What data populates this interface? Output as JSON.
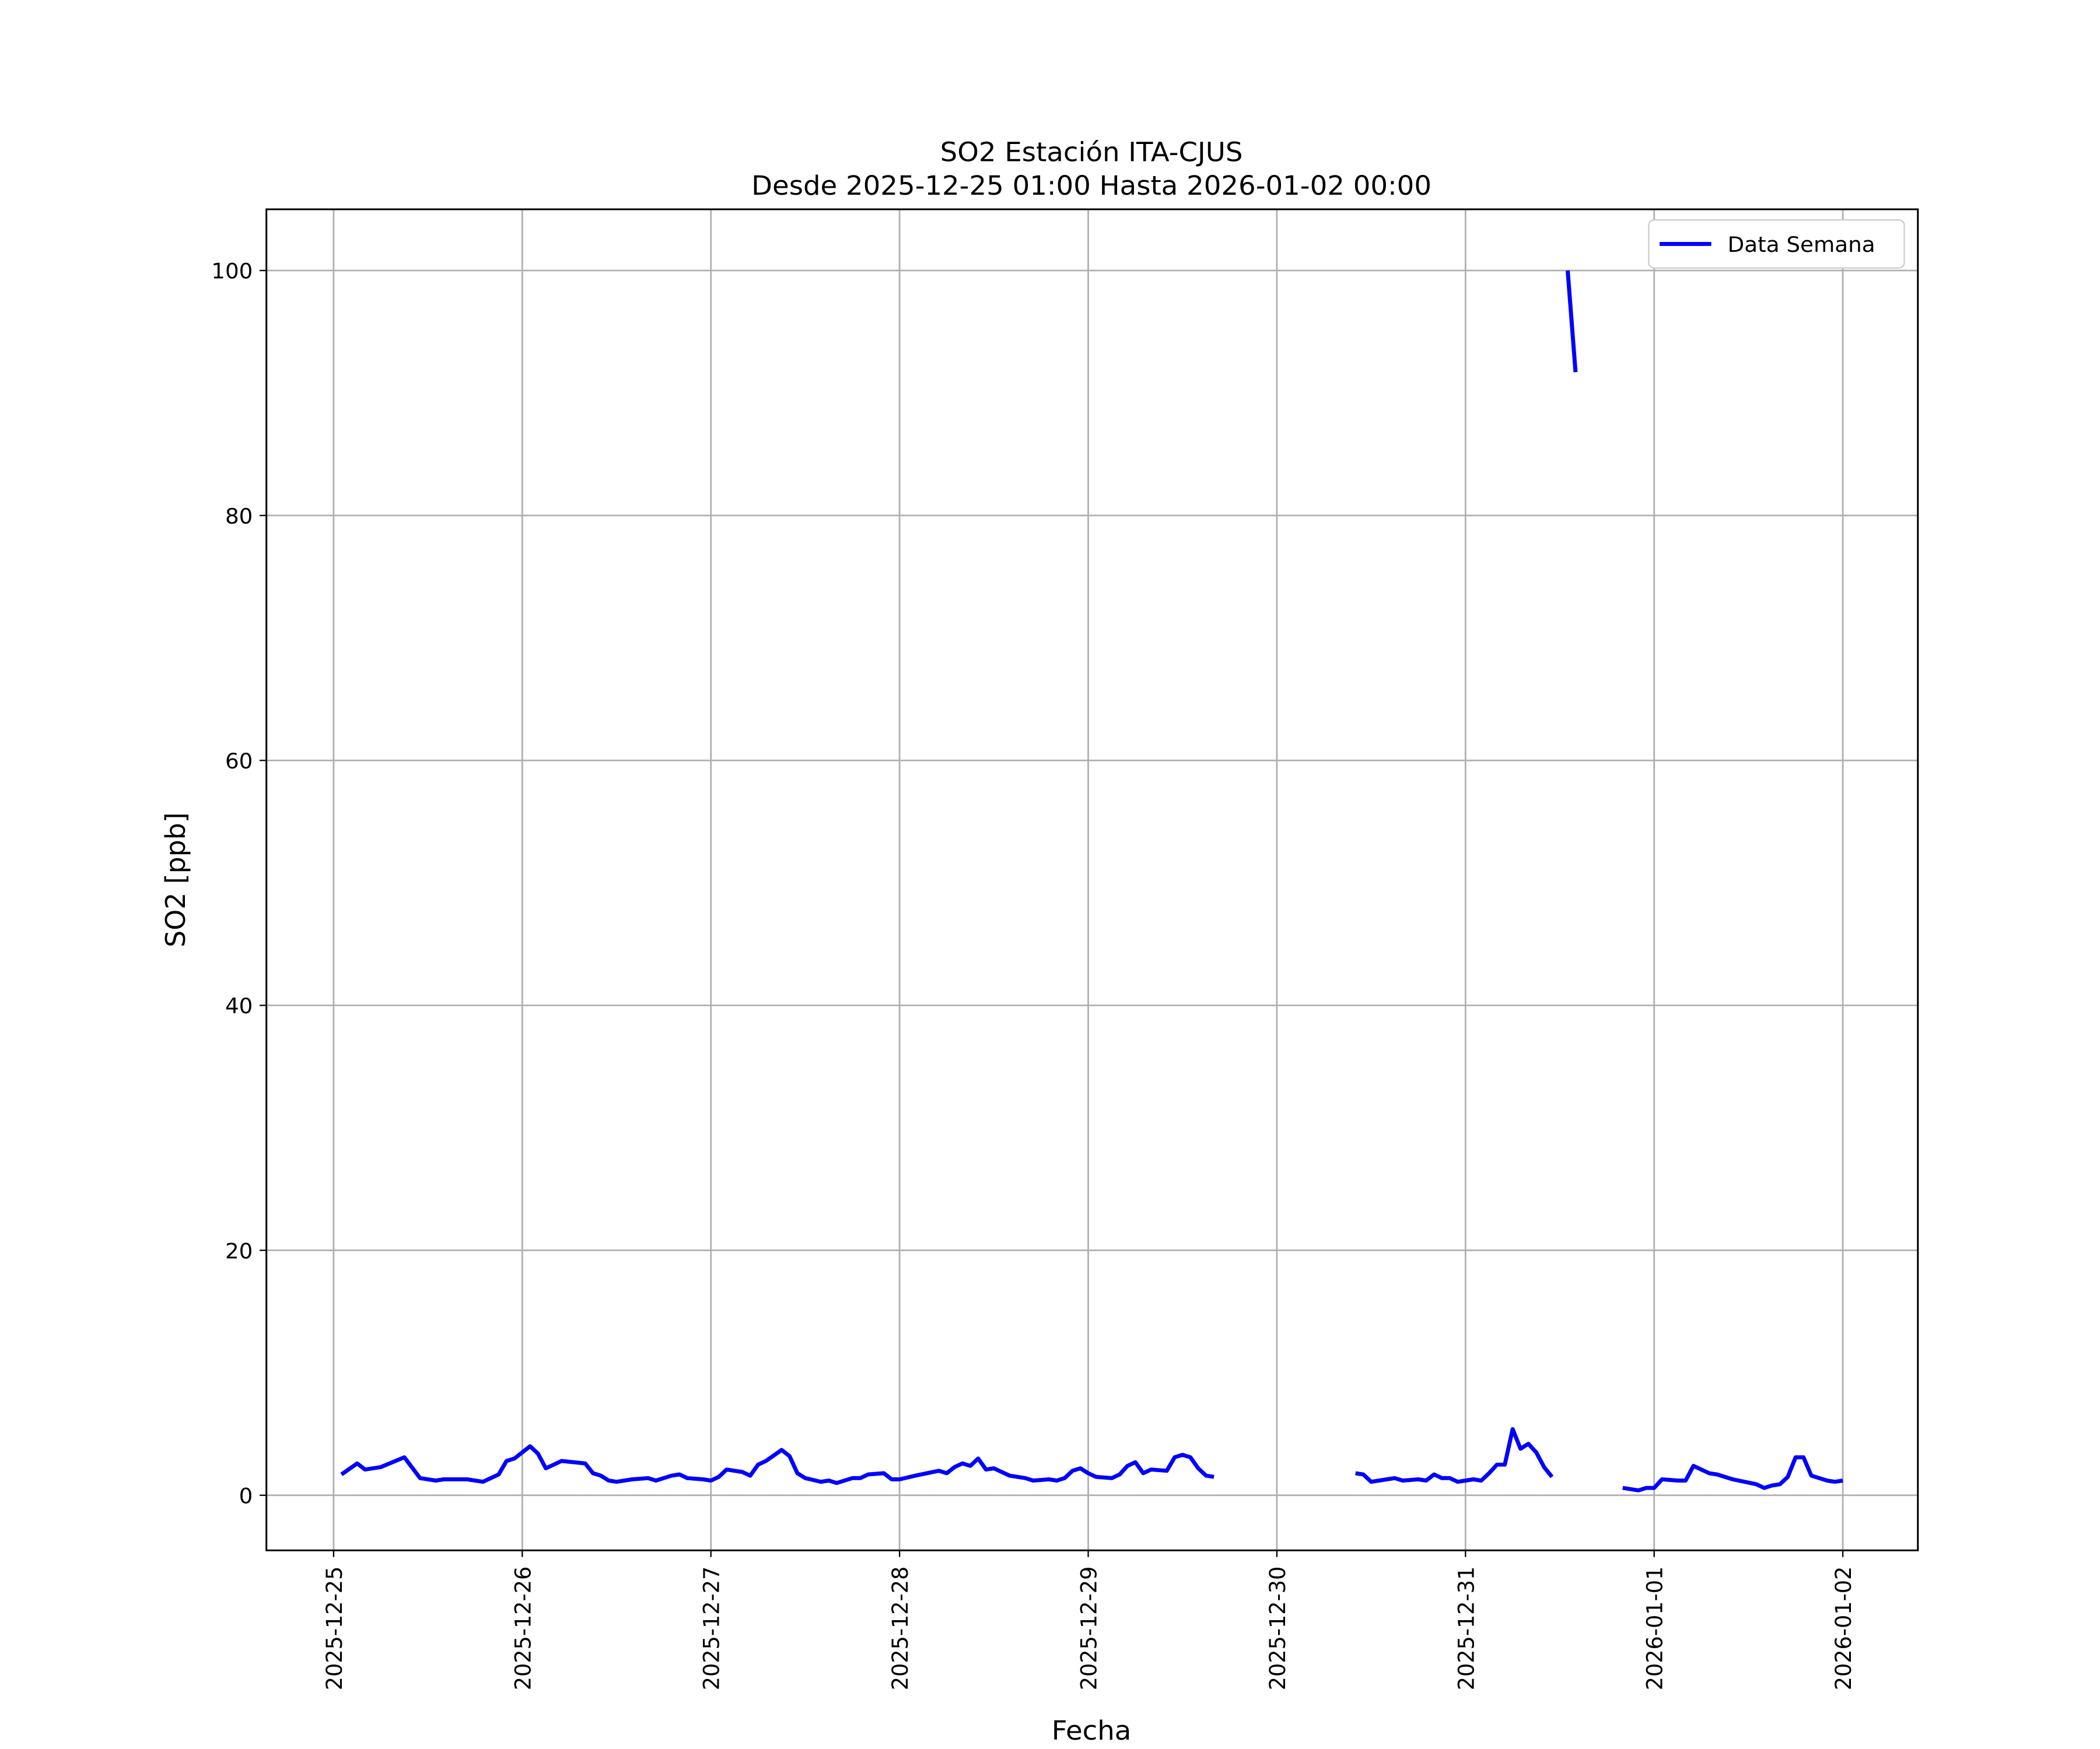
{
  "chart_data": {
    "type": "line",
    "title": "SO2 Estación ITA-CJUS",
    "subtitle": "Desde 2025-12-25 01:00 Hasta 2026-01-02 00:00",
    "x_label": "Fecha",
    "y_label": "SO2 [ppb]",
    "x": [
      "2025-12-25 01:00",
      "2025-12-25 03:00",
      "2025-12-25 04:00",
      "2025-12-25 06:00",
      "2025-12-25 09:00",
      "2025-12-25 11:00",
      "2025-12-25 13:00",
      "2025-12-25 14:00",
      "2025-12-25 17:00",
      "2025-12-25 19:00",
      "2025-12-25 21:00",
      "2025-12-25 22:00",
      "2025-12-25 23:00",
      "2025-12-26 01:00",
      "2025-12-26 02:00",
      "2025-12-26 03:00",
      "2025-12-26 05:00",
      "2025-12-26 08:00",
      "2025-12-26 09:00",
      "2025-12-26 10:00",
      "2025-12-26 11:00",
      "2025-12-26 12:00",
      "2025-12-26 14:00",
      "2025-12-26 16:00",
      "2025-12-26 17:00",
      "2025-12-26 19:00",
      "2025-12-26 20:00",
      "2025-12-26 21:00",
      "2025-12-26 23:00",
      "2025-12-27 00:00",
      "2025-12-27 01:00",
      "2025-12-27 02:00",
      "2025-12-27 04:00",
      "2025-12-27 05:00",
      "2025-12-27 06:00",
      "2025-12-27 07:00",
      "2025-12-27 09:00",
      "2025-12-27 10:00",
      "2025-12-27 11:00",
      "2025-12-27 12:00",
      "2025-12-27 14:00",
      "2025-12-27 15:00",
      "2025-12-27 16:00",
      "2025-12-27 18:00",
      "2025-12-27 19:00",
      "2025-12-27 20:00",
      "2025-12-27 22:00",
      "2025-12-27 23:00",
      "2025-12-28 00:00",
      "2025-12-28 02:00",
      "2025-12-28 05:00",
      "2025-12-28 06:00",
      "2025-12-28 07:00",
      "2025-12-28 08:00",
      "2025-12-28 09:00",
      "2025-12-28 10:00",
      "2025-12-28 11:00",
      "2025-12-28 12:00",
      "2025-12-28 14:00",
      "2025-12-28 16:00",
      "2025-12-28 17:00",
      "2025-12-28 19:00",
      "2025-12-28 20:00",
      "2025-12-28 21:00",
      "2025-12-28 22:00",
      "2025-12-28 23:00",
      "2025-12-29 00:00",
      "2025-12-29 01:00",
      "2025-12-29 03:00",
      "2025-12-29 04:00",
      "2025-12-29 05:00",
      "2025-12-29 06:00",
      "2025-12-29 07:00",
      "2025-12-29 08:00",
      "2025-12-29 10:00",
      "2025-12-29 11:00",
      "2025-12-29 12:00",
      "2025-12-29 13:00",
      "2025-12-29 14:00",
      "2025-12-29 15:00",
      "2025-12-29 16:00",
      "2025-12-29 17:00",
      "2025-12-30 10:00",
      "2025-12-30 11:00",
      "2025-12-30 12:00",
      "2025-12-30 14:00",
      "2025-12-30 15:00",
      "2025-12-30 16:00",
      "2025-12-30 18:00",
      "2025-12-30 19:00",
      "2025-12-30 20:00",
      "2025-12-30 21:00",
      "2025-12-30 22:00",
      "2025-12-30 23:00",
      "2025-12-31 00:00",
      "2025-12-31 01:00",
      "2025-12-31 02:00",
      "2025-12-31 03:00",
      "2025-12-31 04:00",
      "2025-12-31 05:00",
      "2025-12-31 06:00",
      "2025-12-31 07:00",
      "2025-12-31 08:00",
      "2025-12-31 09:00",
      "2025-12-31 10:00",
      "2025-12-31 11:00",
      "2025-12-31 12:00",
      "2025-12-31 13:00",
      "2025-12-31 14:00",
      "2025-12-31 15:00",
      "2025-12-31 20:00",
      "2025-12-31 21:00",
      "2025-12-31 22:00",
      "2025-12-31 23:00",
      "2026-01-01 00:00",
      "2026-01-01 01:00",
      "2026-01-01 03:00",
      "2026-01-01 04:00",
      "2026-01-01 05:00",
      "2026-01-01 07:00",
      "2026-01-01 08:00",
      "2026-01-01 10:00",
      "2026-01-01 13:00",
      "2026-01-01 14:00",
      "2026-01-01 15:00",
      "2026-01-01 16:00",
      "2026-01-01 17:00",
      "2026-01-01 18:00",
      "2026-01-01 19:00",
      "2026-01-01 20:00",
      "2026-01-01 22:00",
      "2026-01-01 23:00",
      "2026-01-02 00:00"
    ],
    "series": [
      {
        "name": "Data Semana",
        "color": "#0000ff",
        "values": [
          1.7,
          2.6,
          2.1,
          2.3,
          3.1,
          1.4,
          1.2,
          1.3,
          1.3,
          1.1,
          1.7,
          2.8,
          3.0,
          4.0,
          3.4,
          2.2,
          2.8,
          2.6,
          1.8,
          1.6,
          1.2,
          1.1,
          1.3,
          1.4,
          1.2,
          1.6,
          1.7,
          1.4,
          1.3,
          1.2,
          1.5,
          2.1,
          1.9,
          1.6,
          2.5,
          2.8,
          3.7,
          3.2,
          1.8,
          1.4,
          1.1,
          1.2,
          1.0,
          1.4,
          1.4,
          1.7,
          1.8,
          1.3,
          1.3,
          1.6,
          2.0,
          1.8,
          2.3,
          2.6,
          2.4,
          3.0,
          2.1,
          2.2,
          1.6,
          1.4,
          1.2,
          1.3,
          1.2,
          1.4,
          2.0,
          2.2,
          1.8,
          1.5,
          1.4,
          1.7,
          2.4,
          2.7,
          1.8,
          2.1,
          2.0,
          3.1,
          3.3,
          3.1,
          2.2,
          1.6,
          1.5,
          null,
          1.8,
          1.7,
          1.1,
          1.3,
          1.4,
          1.2,
          1.3,
          1.2,
          1.7,
          1.4,
          1.4,
          1.1,
          1.2,
          1.3,
          1.2,
          1.8,
          2.5,
          2.5,
          5.4,
          3.8,
          4.2,
          3.5,
          2.3,
          1.5,
          null,
          100,
          91.7,
          null,
          0.6,
          0.5,
          0.4,
          0.6,
          0.6,
          1.3,
          1.2,
          1.2,
          2.4,
          1.8,
          1.7,
          1.3,
          0.9,
          0.6,
          0.8,
          0.9,
          1.5,
          3.1,
          3.1,
          1.6,
          1.2,
          1.1,
          1.2
        ]
      }
    ],
    "xlim": [
      "2025-12-24 15:27",
      "2026-01-02 09:33"
    ],
    "xticks": [
      "2025-12-25",
      "2025-12-26",
      "2025-12-27",
      "2025-12-28",
      "2025-12-29",
      "2025-12-30",
      "2025-12-31",
      "2026-01-01",
      "2026-01-02"
    ],
    "ylim": [
      -4.5,
      105
    ],
    "yticks": [
      0,
      20,
      40,
      60,
      80,
      100
    ],
    "grid": true,
    "legend": "upper right"
  }
}
